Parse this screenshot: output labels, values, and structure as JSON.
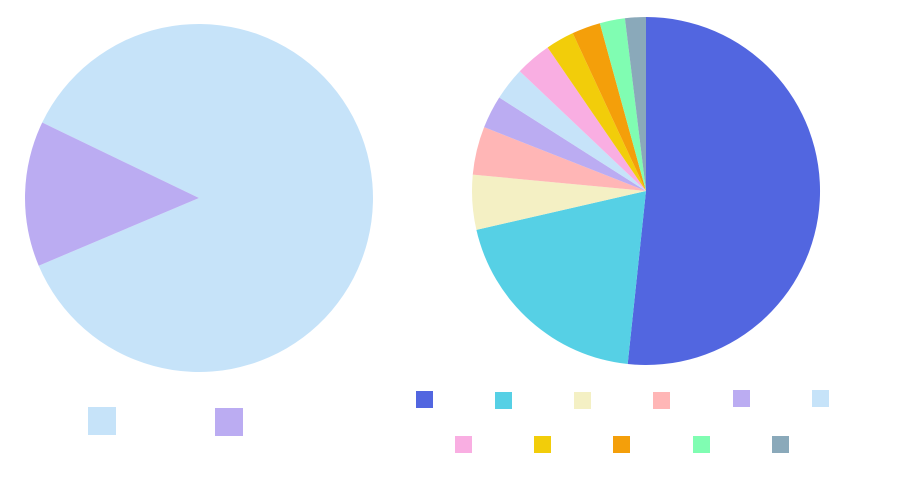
{
  "chart_data": [
    {
      "type": "pie",
      "title": "",
      "start_angle_deg": 154.3,
      "direction": "clockwise",
      "slices": [
        {
          "name": "",
          "value": 86.5,
          "color": "#c6e3f9"
        },
        {
          "name": "",
          "value": 13.5,
          "color": "#bbacf2"
        }
      ],
      "legend": {
        "placement": "bottom"
      }
    },
    {
      "type": "pie",
      "title": "",
      "start_angle_deg": 90,
      "direction": "clockwise",
      "slices": [
        {
          "name": "",
          "value": 50.8,
          "color": "#5266e0"
        },
        {
          "name": "",
          "value": 19.4,
          "color": "#56d0e5"
        },
        {
          "name": "",
          "value": 5.0,
          "color": "#f4f0c4"
        },
        {
          "name": "",
          "value": 4.4,
          "color": "#ffb6b6"
        },
        {
          "name": "",
          "value": 3.0,
          "color": "#bbacf2"
        },
        {
          "name": "",
          "value": 3.0,
          "color": "#c6e3f9"
        },
        {
          "name": "",
          "value": 3.3,
          "color": "#f9aee2"
        },
        {
          "name": "",
          "value": 2.6,
          "color": "#f2cd0a"
        },
        {
          "name": "",
          "value": 2.6,
          "color": "#f49f0a"
        },
        {
          "name": "",
          "value": 2.3,
          "color": "#80fdb2"
        },
        {
          "name": "",
          "value": 1.9,
          "color": "#8aa9ba"
        }
      ],
      "legend": {
        "placement": "bottom"
      }
    }
  ]
}
